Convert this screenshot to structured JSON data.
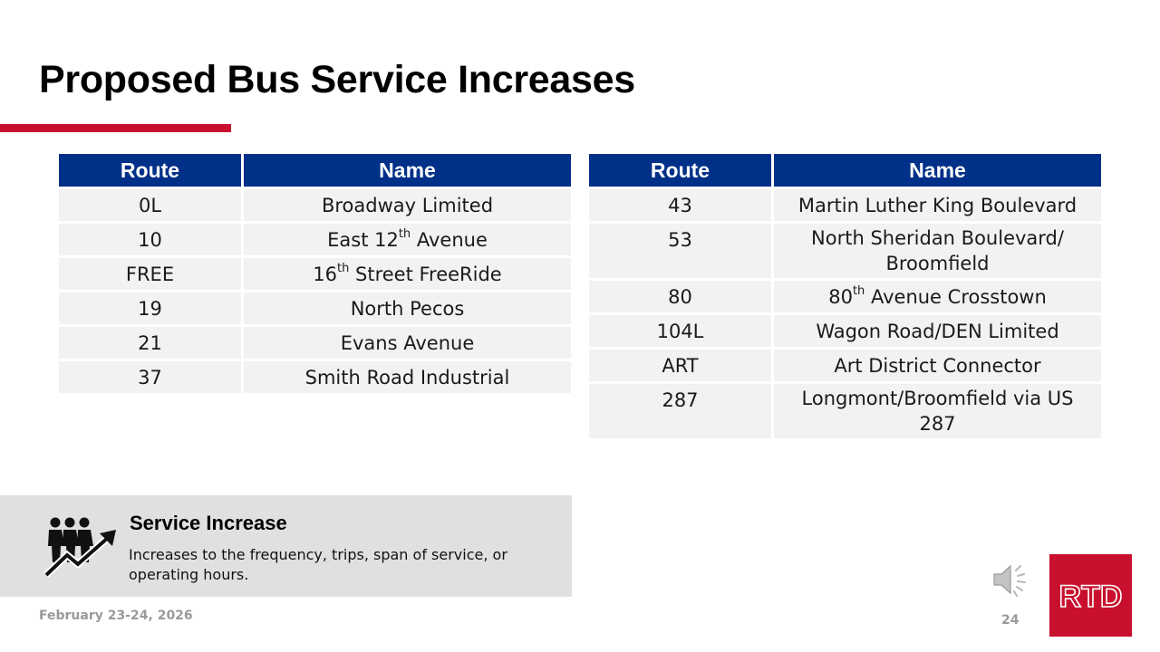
{
  "slide": {
    "title": "Proposed Bus Service Increases",
    "footer_date": "February 23-24, 2026",
    "page_number": "24",
    "accent_color": "#c8102e",
    "header_color": "#003087"
  },
  "table_headers": {
    "route": "Route",
    "name": "Name"
  },
  "left_table": [
    {
      "route": "0L",
      "name": "Broadway Limited"
    },
    {
      "route": "10",
      "name": "East 12",
      "sup": "th",
      "name_after": " Avenue"
    },
    {
      "route": "FREE",
      "name": "16",
      "sup": "th",
      "name_after": " Street FreeRide"
    },
    {
      "route": "19",
      "name": "North Pecos"
    },
    {
      "route": "21",
      "name": "Evans Avenue"
    },
    {
      "route": "37",
      "name": "Smith Road Industrial"
    }
  ],
  "right_table": [
    {
      "route": "43",
      "name": "Martin Luther King Boulevard"
    },
    {
      "route": "53",
      "name": "North Sheridan Boulevard/ Broomfield"
    },
    {
      "route": "80",
      "name": "80",
      "sup": "th",
      "name_after": " Avenue Crosstown"
    },
    {
      "route": "104L",
      "name": "Wagon Road/DEN Limited"
    },
    {
      "route": "ART",
      "name": "Art District Connector"
    },
    {
      "route": "287",
      "name": "Longmont/Broomfield via US 287"
    }
  ],
  "legend": {
    "title": "Service Increase",
    "description": "Increases to the frequency, trips, span of service, or operating hours.",
    "icon": "people-trend-up-icon"
  },
  "icons": {
    "audio": "speaker-icon",
    "logo": "rtd-logo"
  },
  "logo_text": "RTD"
}
